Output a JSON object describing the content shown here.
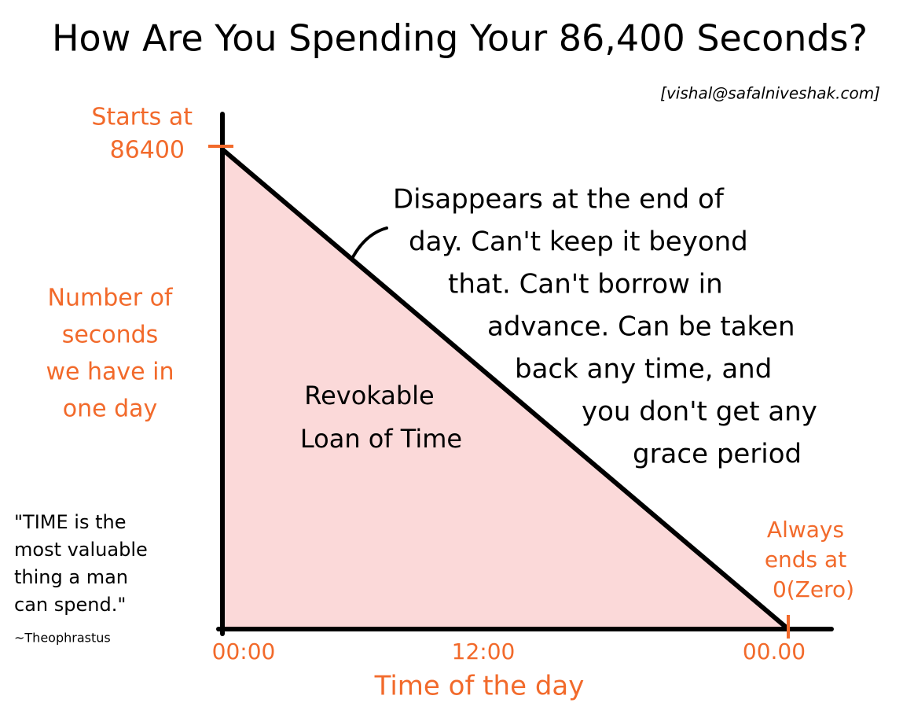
{
  "chart_data": {
    "type": "area",
    "title": "How Are You Spending Your 86,400 Seconds?",
    "source": "[vishal@safalniveshak.com]",
    "categories": [
      "00:00",
      "12:00",
      "00.00"
    ],
    "values": [
      86400,
      43200,
      0
    ],
    "ylim": [
      0,
      86400
    ],
    "color": "#f26a2b",
    "fill": "#fbd9d9",
    "x_label": "Time of the day",
    "y_label": [
      "Number of",
      "seconds",
      "we have in",
      "one day"
    ],
    "start_note": [
      "Starts at",
      "86400"
    ],
    "end_note": [
      "Always",
      "ends at",
      "0(Zero)"
    ],
    "area_label": [
      "Revokable",
      "Loan of Time"
    ],
    "note": [
      "Disappears at the end of",
      "day. Can't keep it beyond",
      "that. Can't borrow in",
      "advance. Can be taken",
      "back any time, and",
      "you don't get any",
      "grace period"
    ],
    "quote": [
      "\"TIME is the",
      "most valuable",
      "thing a man",
      "can spend.\""
    ],
    "attribution": "~Theophrastus"
  }
}
